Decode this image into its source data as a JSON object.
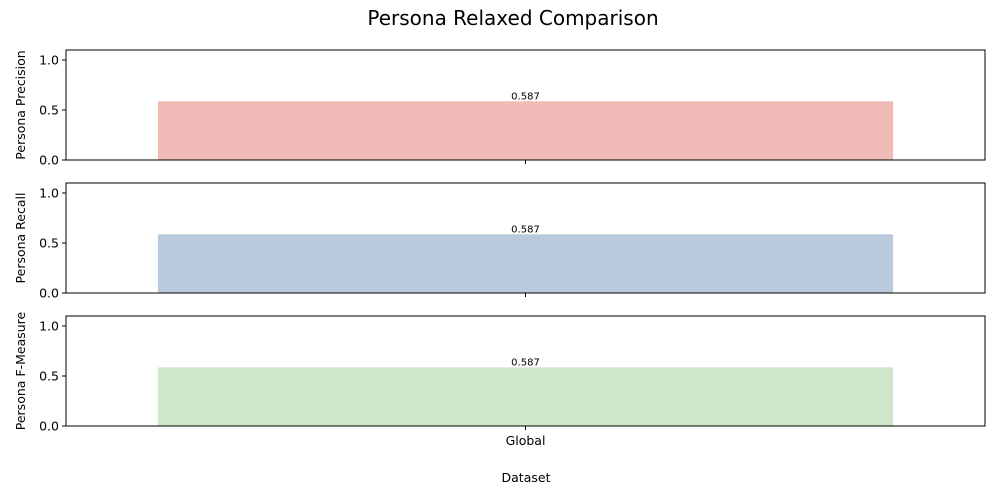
{
  "chart_data": {
    "type": "bar",
    "title": "Persona Relaxed Comparison",
    "xlabel": "Dataset",
    "categories": [
      "Global"
    ],
    "grid": false,
    "panels": [
      {
        "ylabel": "Persona Precision",
        "values": [
          0.587
        ],
        "data_labels": [
          "0.587"
        ],
        "color": "#f0bbb7",
        "ylim": [
          0,
          1.1
        ],
        "yticks": [
          0.0,
          0.5,
          1.0
        ],
        "ytick_labels": [
          "0.0",
          "0.5",
          "1.0"
        ]
      },
      {
        "ylabel": "Persona Recall",
        "values": [
          0.587
        ],
        "data_labels": [
          "0.587"
        ],
        "color": "#b8cadc",
        "ylim": [
          0,
          1.1
        ],
        "yticks": [
          0.0,
          0.5,
          1.0
        ],
        "ytick_labels": [
          "0.0",
          "0.5",
          "1.0"
        ]
      },
      {
        "ylabel": "Persona F-Measure",
        "values": [
          0.587
        ],
        "data_labels": [
          "0.587"
        ],
        "color": "#d0e6cb",
        "ylim": [
          0,
          1.1
        ],
        "yticks": [
          0.0,
          0.5,
          1.0
        ],
        "ytick_labels": [
          "0.0",
          "0.5",
          "1.0"
        ]
      }
    ]
  }
}
